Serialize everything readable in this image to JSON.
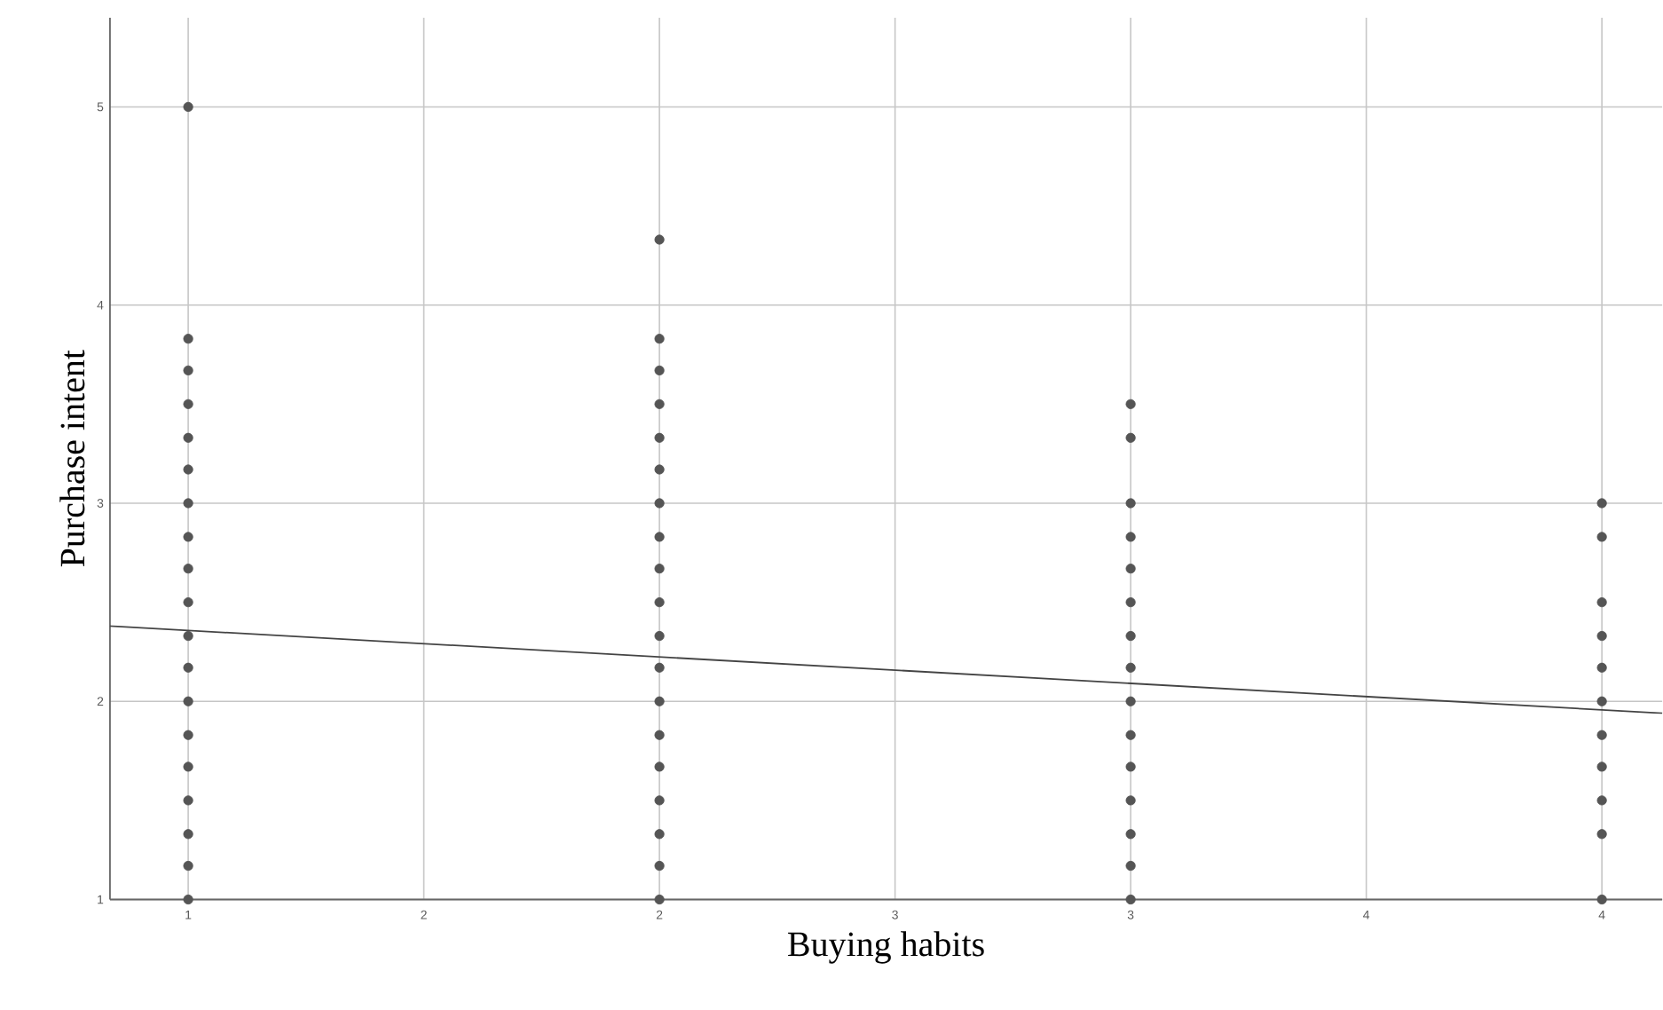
{
  "chart_data": {
    "type": "scatter",
    "xlabel": "Buying habits",
    "ylabel": "Purchase intent",
    "series": [
      {
        "color": "#555555",
        "marker": "circle",
        "x": [
          1,
          1,
          1,
          1,
          1,
          1,
          1,
          1,
          1,
          1,
          1,
          1,
          1,
          1,
          1,
          1,
          1,
          1,
          1,
          2,
          2,
          2,
          2,
          2,
          2,
          2,
          2,
          2,
          2,
          2,
          2,
          2,
          2,
          2,
          2,
          2,
          2,
          2,
          3,
          3,
          3,
          3,
          3,
          3,
          3,
          3,
          3,
          3,
          3,
          3,
          3,
          3,
          3,
          4,
          4,
          4,
          4,
          4,
          4,
          4,
          4,
          4,
          4,
          4
        ],
        "values": [
          1,
          1.17,
          1.33,
          1.5,
          1.67,
          1.83,
          2,
          2.17,
          2.33,
          2.5,
          2.67,
          2.83,
          3,
          3.17,
          3.33,
          3.5,
          3.67,
          3.83,
          5,
          1,
          1.17,
          1.33,
          1.5,
          1.67,
          1.83,
          2,
          2.17,
          2.33,
          2.5,
          2.67,
          2.83,
          3,
          3.17,
          3.33,
          3.5,
          3.67,
          3.83,
          4.33,
          1,
          1.17,
          1.33,
          1.5,
          1.67,
          1.83,
          2,
          2.17,
          2.33,
          2.5,
          2.67,
          2.83,
          3,
          3.33,
          3.5,
          1,
          1.33,
          1.5,
          1.67,
          1.83,
          2,
          2.17,
          2.33,
          2.5,
          2.83,
          3
        ]
      },
      {
        "type": "line",
        "color": "#444444",
        "marker": "none",
        "x": [
          0.834,
          4.128
        ],
        "values": [
          2.38,
          1.94
        ]
      }
    ],
    "xlim": [
      0.834,
      4.128
    ],
    "ylim": [
      1,
      5.45
    ],
    "xticks": [
      1,
      {
        "value": 1.5,
        "label": "2"
      },
      2,
      {
        "value": 2.5,
        "label": "3"
      },
      3,
      {
        "value": 3.5,
        "label": "4"
      },
      4
    ],
    "yticks": [
      1,
      2,
      3,
      4,
      5
    ],
    "grid": true
  }
}
